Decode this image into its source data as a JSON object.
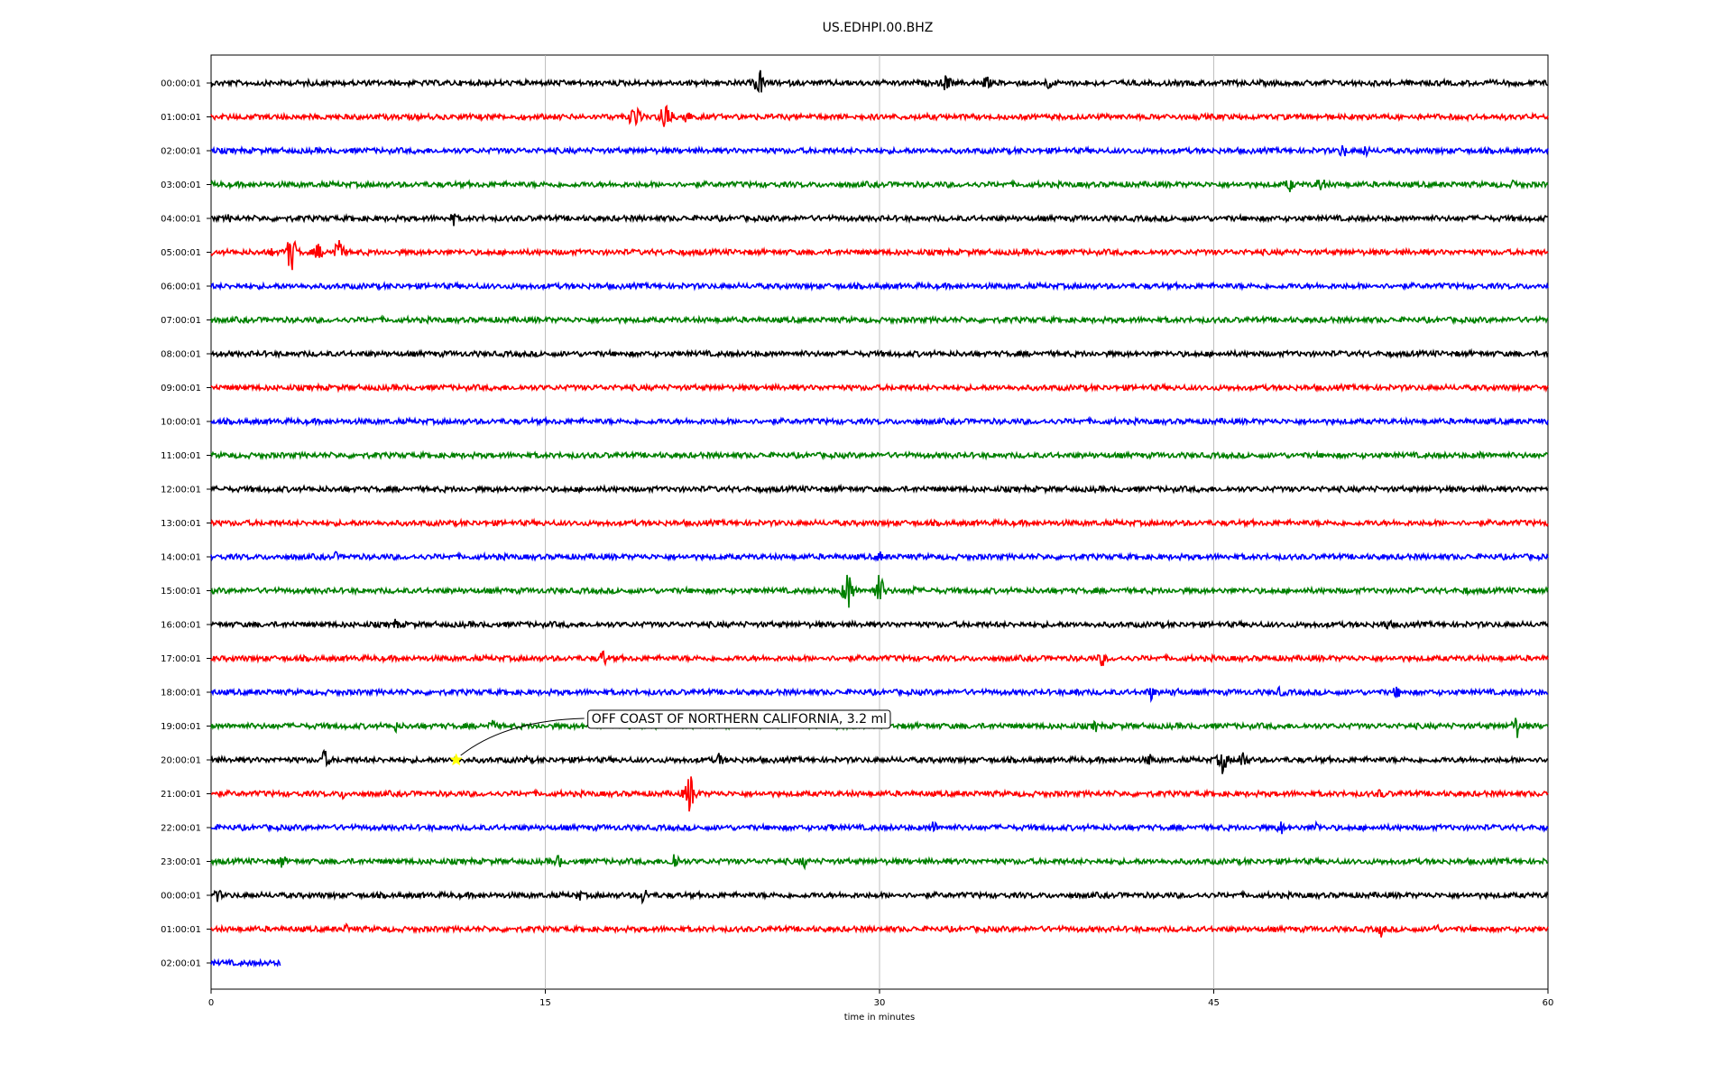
{
  "chart_data": {
    "type": "line",
    "title": "US.EDHPI.00.BHZ",
    "xlabel": "time in minutes",
    "ylabel": "",
    "xlim": [
      0,
      60
    ],
    "x_ticks": [
      "0",
      "15",
      "30",
      "45",
      "60"
    ],
    "x_tick_values": [
      0,
      15,
      30,
      45,
      60
    ],
    "grid": "vertical-at-ticks",
    "color_cycle": [
      "#000000",
      "#ff0000",
      "#0000ff",
      "#008000"
    ],
    "rows": [
      {
        "label": "00:00:01",
        "end_minute": 60,
        "events": [
          {
            "t": 24.6,
            "a": 20
          },
          {
            "t": 33.0,
            "a": 14
          },
          {
            "t": 34.8,
            "a": 10
          },
          {
            "t": 37.6,
            "a": 9
          }
        ]
      },
      {
        "label": "01:00:01",
        "end_minute": 60,
        "events": [
          {
            "t": 19.0,
            "a": 20
          },
          {
            "t": 20.4,
            "a": 26
          },
          {
            "t": 21.3,
            "a": 12
          }
        ]
      },
      {
        "label": "02:00:01",
        "end_minute": 60,
        "events": [
          {
            "t": 50.8,
            "a": 10
          },
          {
            "t": 51.8,
            "a": 9
          }
        ]
      },
      {
        "label": "03:00:01",
        "end_minute": 60,
        "events": [
          {
            "t": 48.4,
            "a": 10
          },
          {
            "t": 49.8,
            "a": 12
          },
          {
            "t": 58.5,
            "a": 7
          }
        ]
      },
      {
        "label": "04:00:01",
        "end_minute": 60,
        "events": [
          {
            "t": 0.8,
            "a": 6
          },
          {
            "t": 10.9,
            "a": 9
          }
        ]
      },
      {
        "label": "05:00:01",
        "end_minute": 60,
        "events": [
          {
            "t": 2.8,
            "a": 8
          },
          {
            "t": 3.6,
            "a": 28
          },
          {
            "t": 4.8,
            "a": 12
          },
          {
            "t": 5.7,
            "a": 20
          }
        ]
      },
      {
        "label": "06:00:01",
        "end_minute": 60,
        "events": []
      },
      {
        "label": "07:00:01",
        "end_minute": 60,
        "events": []
      },
      {
        "label": "08:00:01",
        "end_minute": 60,
        "events": []
      },
      {
        "label": "09:00:01",
        "end_minute": 60,
        "events": []
      },
      {
        "label": "10:00:01",
        "end_minute": 60,
        "events": []
      },
      {
        "label": "11:00:01",
        "end_minute": 60,
        "events": [
          {
            "t": 57.0,
            "a": 6
          }
        ]
      },
      {
        "label": "12:00:01",
        "end_minute": 60,
        "events": []
      },
      {
        "label": "13:00:01",
        "end_minute": 60,
        "events": []
      },
      {
        "label": "14:00:01",
        "end_minute": 60,
        "events": [
          {
            "t": 5.6,
            "a": 6
          },
          {
            "t": 13.0,
            "a": 6
          },
          {
            "t": 30.0,
            "a": 8
          }
        ]
      },
      {
        "label": "15:00:01",
        "end_minute": 60,
        "events": [
          {
            "t": 28.6,
            "a": 28
          },
          {
            "t": 30.0,
            "a": 24
          },
          {
            "t": 31.5,
            "a": 8
          },
          {
            "t": 56.3,
            "a": 6
          }
        ]
      },
      {
        "label": "16:00:01",
        "end_minute": 60,
        "events": [
          {
            "t": 8.3,
            "a": 8
          },
          {
            "t": 52.8,
            "a": 9
          }
        ]
      },
      {
        "label": "17:00:01",
        "end_minute": 60,
        "events": [
          {
            "t": 17.6,
            "a": 12
          },
          {
            "t": 40.0,
            "a": 11
          }
        ]
      },
      {
        "label": "18:00:01",
        "end_minute": 60,
        "events": [
          {
            "t": 38.8,
            "a": 8
          },
          {
            "t": 42.2,
            "a": 10
          },
          {
            "t": 43.3,
            "a": 8
          },
          {
            "t": 48.0,
            "a": 8
          },
          {
            "t": 53.2,
            "a": 9
          }
        ]
      },
      {
        "label": "19:00:01",
        "end_minute": 60,
        "events": [
          {
            "t": 8.3,
            "a": 7
          },
          {
            "t": 12.6,
            "a": 9
          },
          {
            "t": 39.7,
            "a": 8
          },
          {
            "t": 58.6,
            "a": 16
          }
        ]
      },
      {
        "label": "20:00:01",
        "end_minute": 60,
        "events": [
          {
            "t": 5.1,
            "a": 14
          },
          {
            "t": 14.1,
            "a": 6
          },
          {
            "t": 22.8,
            "a": 10
          },
          {
            "t": 42.1,
            "a": 9
          },
          {
            "t": 45.4,
            "a": 18
          },
          {
            "t": 46.3,
            "a": 14
          }
        ]
      },
      {
        "label": "21:00:01",
        "end_minute": 60,
        "events": [
          {
            "t": 5.9,
            "a": 7
          },
          {
            "t": 21.5,
            "a": 28
          },
          {
            "t": 52.5,
            "a": 8
          }
        ]
      },
      {
        "label": "22:00:01",
        "end_minute": 60,
        "events": [
          {
            "t": 27.8,
            "a": 6
          },
          {
            "t": 32.4,
            "a": 10
          },
          {
            "t": 48.0,
            "a": 10
          },
          {
            "t": 49.6,
            "a": 8
          }
        ]
      },
      {
        "label": "23:00:01",
        "end_minute": 60,
        "events": [
          {
            "t": 3.2,
            "a": 10
          },
          {
            "t": 15.6,
            "a": 9
          },
          {
            "t": 20.8,
            "a": 14
          },
          {
            "t": 26.6,
            "a": 9
          }
        ]
      },
      {
        "label": "00:00:01",
        "end_minute": 60,
        "events": [
          {
            "t": 0.3,
            "a": 9
          },
          {
            "t": 16.5,
            "a": 8
          },
          {
            "t": 19.4,
            "a": 12
          }
        ]
      },
      {
        "label": "01:00:01",
        "end_minute": 60,
        "events": [
          {
            "t": 6.1,
            "a": 7
          },
          {
            "t": 52.5,
            "a": 10
          },
          {
            "t": 55.0,
            "a": 8
          }
        ]
      },
      {
        "label": "02:00:01",
        "end_minute": 3.1,
        "events": []
      }
    ],
    "annotation": {
      "text": "OFF COAST OF NORTHERN CALIFORNIA, 3.2 ml",
      "row_index": 20,
      "x_minute": 11.0,
      "marker": "star",
      "marker_color": "#ffff00"
    }
  }
}
